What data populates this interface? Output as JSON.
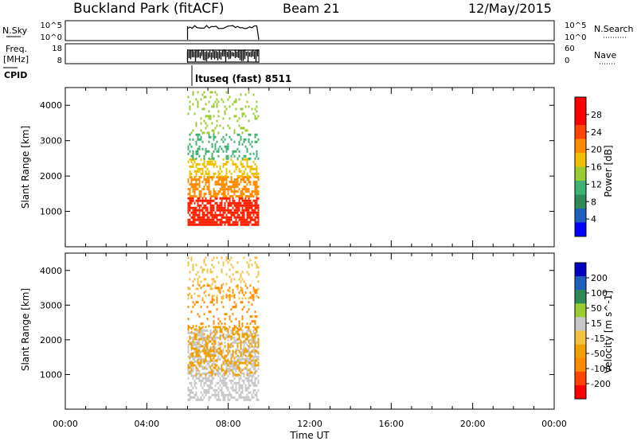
{
  "header": {
    "station": "Buckland Park (fitACF)",
    "beam": "Beam 21",
    "date": "12/May/2015"
  },
  "side_labels": {
    "nsky": "N.Sky",
    "nsky_ticks": [
      "10^5",
      "10^0"
    ],
    "freq": "Freq.",
    "freq_unit": "[MHz]",
    "freq_ticks": [
      "18",
      "8"
    ],
    "cpid": "CPID",
    "nsearch": "N.Search",
    "nsearch_ticks": [
      "10^5",
      "10^0"
    ],
    "nave": "Nave",
    "nave_ticks": [
      "60",
      "0"
    ]
  },
  "cpid_text": "ltuseq (fast) 8511",
  "chart_data": [
    {
      "type": "heatmap",
      "name": "power",
      "ylabel": "Slant Range [km]",
      "xlabel": "",
      "x_range_hours": [
        0,
        24
      ],
      "ylim": [
        0,
        4500
      ],
      "y_ticks": [
        1000,
        2000,
        3000,
        4000
      ],
      "data_start_hour": 6.0,
      "data_end_hour": 9.5,
      "colorbar": {
        "label": "Power [dB]",
        "tick_labels": [
          "4",
          "8",
          "12",
          "16",
          "20",
          "24",
          "28"
        ],
        "colors": [
          "#0000ff",
          "#1f5fbf",
          "#2e8b57",
          "#3cb371",
          "#9acd32",
          "#f0c000",
          "#ff8c00",
          "#ff4500",
          "#ff0000",
          "#ff0000"
        ]
      },
      "bands": [
        {
          "from_km": 600,
          "to_km": 1400,
          "color": "#ff2000",
          "density": 0.75
        },
        {
          "from_km": 1400,
          "to_km": 2000,
          "color": "#ff8c00",
          "density": 0.6
        },
        {
          "from_km": 2000,
          "to_km": 2500,
          "color": "#f0c000",
          "density": 0.45
        },
        {
          "from_km": 2500,
          "to_km": 3200,
          "color": "#3cb371",
          "density": 0.3
        },
        {
          "from_km": 3200,
          "to_km": 4400,
          "color": "#9acd32",
          "density": 0.15
        }
      ]
    },
    {
      "type": "heatmap",
      "name": "velocity",
      "ylabel": "Slant Range [km]",
      "xlabel": "Time UT",
      "x_range_hours": [
        0,
        24
      ],
      "x_tick_labels": [
        "00:00",
        "04:00",
        "08:00",
        "12:00",
        "16:00",
        "20:00",
        "00:00"
      ],
      "ylim": [
        0,
        4500
      ],
      "y_ticks": [
        1000,
        2000,
        3000,
        4000
      ],
      "data_start_hour": 6.0,
      "data_end_hour": 9.5,
      "colorbar": {
        "label": "Velocity [m s^-1]",
        "tick_labels": [
          "-200",
          "-100",
          "-50",
          "-15",
          "15",
          "50",
          "100",
          "200"
        ],
        "colors": [
          "#ff0000",
          "#ff4500",
          "#ff8c00",
          "#f0a000",
          "#f5c040",
          "#c8c8c8",
          "#9acd32",
          "#2e8b57",
          "#1f5fbf",
          "#0000c0"
        ]
      },
      "bands": [
        {
          "from_km": 300,
          "to_km": 2300,
          "color": "#c8c8c8",
          "density": 0.55
        },
        {
          "from_km": 1000,
          "to_km": 2400,
          "color": "#f0a000",
          "density": 0.35
        },
        {
          "from_km": 2300,
          "to_km": 3600,
          "color": "#ff8c00",
          "density": 0.2
        },
        {
          "from_km": 3200,
          "to_km": 4400,
          "color": "#f5c040",
          "density": 0.15
        }
      ]
    }
  ]
}
